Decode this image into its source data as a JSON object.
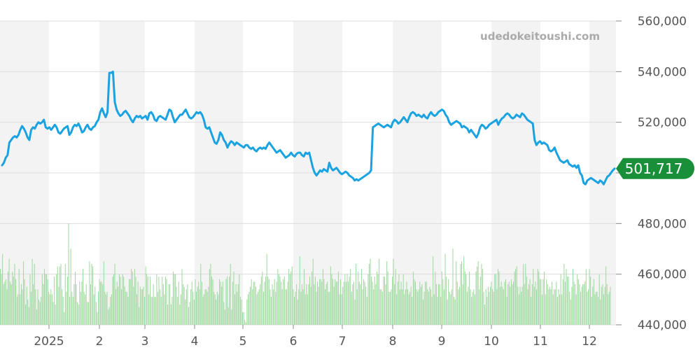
{
  "watermark": "udedokeitoushi.com",
  "chart_data": {
    "type": "line",
    "title": "",
    "xlabel": "",
    "ylabel": "",
    "ylim": [
      440000,
      560000
    ],
    "yticks": [
      440000,
      460000,
      480000,
      500000,
      520000,
      540000,
      560000
    ],
    "ytick_labels": [
      "440,000",
      "460,000",
      "480,000",
      "",
      "520,000",
      "540,000",
      "560,000"
    ],
    "grid": true,
    "x_month_labels": [
      "2025",
      "2",
      "3",
      "4",
      "5",
      "6",
      "7",
      "8",
      "9",
      "10",
      "11",
      "12"
    ],
    "last_value": 501717,
    "last_value_label": "501,717",
    "line_color": "#1aa3e0",
    "volume_color": "#9ed89e",
    "badge_color": "#1a8f3a",
    "series": [
      {
        "values": [
          503000,
          504000,
          506000,
          507000,
          512000,
          513000,
          514000,
          514500,
          514000,
          515000,
          517000,
          518500,
          517500,
          516000,
          514000,
          513000,
          517000,
          518000,
          517500,
          519000,
          520000,
          519500,
          520000,
          521000,
          518000,
          517500,
          518000,
          517000,
          518000,
          519000,
          518000,
          516000,
          515500,
          516500,
          517500,
          518000,
          518500,
          515000,
          516000,
          518000,
          519000,
          518500,
          519500,
          518000,
          516000,
          516500,
          518000,
          519000,
          517500,
          517000,
          518000,
          518500,
          520000,
          521000,
          524000,
          525500,
          523500,
          522000,
          524000,
          539500,
          539500,
          540000,
          528000,
          525000,
          523500,
          522500,
          523000,
          524000,
          524500,
          523500,
          522500,
          521000,
          520000,
          521500,
          522500,
          522000,
          522500,
          521500,
          522000,
          522500,
          521000,
          523500,
          524000,
          523000,
          521000,
          520500,
          522000,
          522500,
          522000,
          521500,
          521000,
          523000,
          525000,
          524500,
          522000,
          520000,
          521000,
          522000,
          523000,
          523000,
          524000,
          525000,
          523500,
          522000,
          521500,
          522000,
          523000,
          524000,
          523500,
          524000,
          523000,
          521000,
          518000,
          517500,
          518000,
          516000,
          514000,
          512000,
          511500,
          513000,
          516000,
          515000,
          513000,
          512000,
          510000,
          511500,
          512500,
          512000,
          511000,
          512000,
          511500,
          511000,
          510500,
          510000,
          511000,
          511000,
          510000,
          509500,
          510000,
          509000,
          508500,
          509500,
          510000,
          509500,
          510000,
          509500,
          511000,
          512000,
          511000,
          510000,
          509000,
          508000,
          508500,
          509000,
          508000,
          507000,
          506000,
          506500,
          507000,
          508000,
          507000,
          506500,
          507500,
          508000,
          508000,
          507000,
          506500,
          508000,
          507500,
          508000,
          505000,
          502000,
          500000,
          499000,
          500000,
          501000,
          500500,
          501500,
          501000,
          500500,
          504000,
          502000,
          501000,
          501500,
          502000,
          501000,
          500000,
          499500,
          500000,
          500500,
          500000,
          499000,
          498500,
          498000,
          497000,
          497500,
          497000,
          497500,
          498000,
          498500,
          499000,
          499500,
          500000,
          501000,
          518000,
          518500,
          519000,
          519500,
          519000,
          518500,
          518000,
          518500,
          519000,
          518500,
          518000,
          520000,
          521000,
          520500,
          519500,
          520000,
          521000,
          522000,
          521000,
          520000,
          522000,
          523500,
          524000,
          523500,
          522500,
          523000,
          522500,
          522000,
          523000,
          522000,
          521500,
          523000,
          524000,
          523000,
          522500,
          523000,
          524000,
          524500,
          525000,
          524500,
          523000,
          522000,
          520000,
          519000,
          519500,
          520000,
          520500,
          520000,
          519500,
          518000,
          518500,
          518000,
          517500,
          516000,
          517000,
          516000,
          515000,
          514000,
          515500,
          518000,
          519000,
          518500,
          517500,
          518000,
          519000,
          519500,
          520000,
          520500,
          521000,
          519000,
          520500,
          521500,
          522000,
          523000,
          523500,
          523000,
          522000,
          521500,
          522000,
          523000,
          522500,
          522000,
          523500,
          523000,
          522000,
          521000,
          520500,
          520000,
          519500,
          513000,
          511000,
          512000,
          512500,
          511500,
          512000,
          511500,
          511000,
          509000,
          508500,
          509000,
          510000,
          508000,
          506500,
          505000,
          504500,
          504000,
          504500,
          505000,
          503500,
          503000,
          502500,
          503000,
          502000,
          503000,
          500000,
          499000,
          496000,
          495500,
          497000,
          497500,
          498000,
          497500,
          497000,
          496500,
          496000,
          497000,
          496500,
          495500,
          497000,
          498500,
          499000,
          500000,
          501000,
          501717
        ]
      }
    ],
    "volume": [
      22,
      20,
      28,
      16,
      17,
      18,
      14,
      21,
      26,
      17,
      16,
      21,
      19,
      24,
      18,
      11,
      12,
      22,
      12,
      16,
      14,
      25,
      18,
      8,
      15,
      10,
      7,
      20,
      13,
      26,
      16,
      24,
      14,
      6,
      14,
      10,
      9,
      11,
      20,
      16,
      22,
      20,
      20,
      18,
      13,
      12,
      14,
      12,
      9,
      19,
      8,
      20,
      23,
      15,
      23,
      24,
      14,
      11,
      5,
      24,
      13,
      19,
      40,
      11,
      30,
      13,
      11,
      16,
      21,
      16,
      9,
      8,
      17,
      13,
      17,
      22,
      13,
      12,
      16,
      9,
      9,
      25,
      16,
      24,
      23,
      12,
      15,
      9,
      5,
      13,
      18,
      17,
      17,
      16,
      25,
      13,
      12,
      13,
      6,
      7,
      11,
      12,
      19,
      20,
      24,
      14,
      17,
      15,
      20,
      19,
      14,
      20,
      19,
      15,
      13,
      13,
      11,
      18,
      18,
      22,
      21,
      15,
      22,
      19,
      12,
      17,
      7,
      15,
      14,
      14,
      15,
      11,
      23,
      20,
      19,
      12,
      19,
      11,
      11,
      16,
      11,
      11,
      20,
      13,
      19,
      14,
      11,
      19,
      16,
      12,
      19,
      18,
      8,
      16,
      16,
      8,
      11,
      21,
      20,
      20,
      15,
      11,
      17,
      8,
      12,
      22,
      16,
      15,
      10,
      14,
      16,
      7,
      9,
      14,
      17,
      13,
      10,
      18,
      13,
      15,
      17,
      14,
      24,
      17,
      11,
      12,
      14,
      14,
      13,
      15,
      22,
      24,
      19,
      18,
      13,
      12,
      10,
      13,
      12,
      18,
      17,
      15,
      17,
      9,
      6,
      18,
      19,
      7,
      19,
      24,
      6,
      17,
      21,
      12,
      16,
      13,
      16,
      20,
      11,
      10,
      5,
      5,
      2,
      1,
      10,
      12,
      13,
      15,
      18,
      14,
      17,
      17,
      15,
      12,
      13,
      14,
      16,
      19,
      21,
      13,
      17,
      19,
      28,
      19,
      18,
      14,
      11,
      16,
      14,
      18,
      13,
      17,
      22,
      20,
      19,
      17,
      14,
      18,
      19,
      14,
      14,
      17,
      22,
      20,
      21,
      23,
      14,
      11,
      13,
      16,
      10,
      14,
      27,
      13,
      16,
      14,
      22,
      12,
      16,
      12,
      16,
      19,
      15,
      21,
      26,
      16,
      19,
      13,
      17,
      15,
      18,
      18,
      17,
      22,
      18,
      14,
      16,
      17,
      13,
      13,
      23,
      20,
      18,
      15,
      18,
      17,
      17,
      21,
      12,
      18,
      12,
      15,
      17,
      20,
      17,
      20,
      17,
      19,
      22,
      13,
      16,
      17,
      10,
      24,
      14,
      21,
      17,
      16,
      22,
      14,
      18,
      17,
      15,
      11,
      20,
      24,
      26,
      19,
      17,
      14,
      19,
      16,
      21,
      20,
      26,
      14,
      14,
      13,
      19,
      19,
      16,
      25,
      21,
      13,
      13,
      14,
      19,
      26,
      16,
      22,
      12,
      17,
      20,
      14,
      17,
      14,
      20,
      12,
      14,
      17,
      14,
      12,
      13,
      15,
      11,
      21,
      18,
      17,
      14,
      13,
      14,
      17,
      15,
      16,
      10,
      13,
      17,
      17,
      14,
      13,
      15,
      14,
      11,
      27,
      12,
      21,
      16,
      11,
      16,
      16,
      11,
      21,
      18,
      14,
      28,
      19,
      10,
      18,
      13,
      12,
      14,
      30,
      11,
      10,
      25,
      17,
      14,
      15,
      24,
      25,
      16,
      27,
      21,
      20,
      13,
      15,
      21,
      14,
      11,
      13,
      14,
      12,
      21,
      23,
      25,
      14,
      19,
      24,
      22,
      13,
      8,
      14,
      11,
      15,
      13,
      15,
      17,
      14,
      13,
      20,
      20,
      14,
      22,
      21,
      15,
      17,
      15,
      14,
      17,
      18,
      11,
      16,
      17,
      15,
      18,
      16,
      17,
      21,
      22,
      23,
      15,
      12,
      15,
      13,
      15,
      24,
      16,
      24,
      19,
      14,
      16,
      18,
      11,
      16,
      22,
      15,
      17,
      14,
      22,
      21,
      18,
      18,
      12,
      18,
      21,
      12,
      18,
      16,
      14,
      15,
      14,
      17,
      12,
      14,
      14,
      17,
      11,
      14,
      12,
      20,
      12,
      18,
      24,
      17,
      22,
      19,
      19,
      13,
      10,
      15,
      22,
      17,
      16,
      12,
      20,
      18,
      16,
      13,
      15,
      16,
      16,
      17,
      22,
      13,
      14,
      22,
      19,
      11,
      15,
      18,
      12,
      13,
      13,
      11,
      20,
      10,
      15,
      16,
      12,
      15,
      23,
      16,
      12,
      13,
      15
    ]
  }
}
